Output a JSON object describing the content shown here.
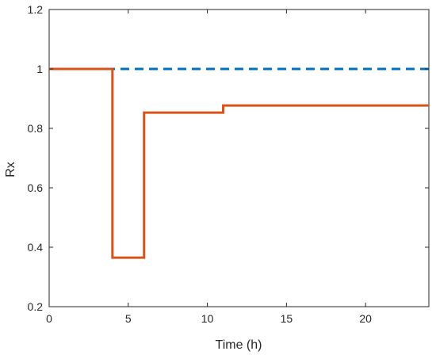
{
  "chart_data": {
    "type": "line",
    "title": "",
    "xlabel": "Time (h)",
    "ylabel": "Rx",
    "xlim": [
      0,
      24
    ],
    "ylim": [
      0.2,
      1.2
    ],
    "xticks": [
      0,
      5,
      10,
      15,
      20
    ],
    "xtick_labels": [
      "0",
      "5",
      "10",
      "15",
      "20"
    ],
    "yticks": [
      0.2,
      0.4,
      0.6,
      0.8,
      1.0,
      1.2
    ],
    "ytick_labels": [
      "0.2",
      "0.4",
      "0.6",
      "0.8",
      "1",
      "1.2"
    ],
    "grid": false,
    "legend": "none",
    "series": [
      {
        "style": "dashed",
        "color": "#0072BD",
        "step": true,
        "x": [
          0,
          24
        ],
        "y": [
          1.0,
          1.0
        ]
      },
      {
        "style": "solid",
        "color": "#D95319",
        "step": true,
        "x": [
          0,
          4,
          4,
          6,
          6,
          11,
          11,
          24
        ],
        "y": [
          1.0,
          1.0,
          0.365,
          0.365,
          0.853,
          0.853,
          0.877,
          0.877
        ]
      }
    ]
  }
}
